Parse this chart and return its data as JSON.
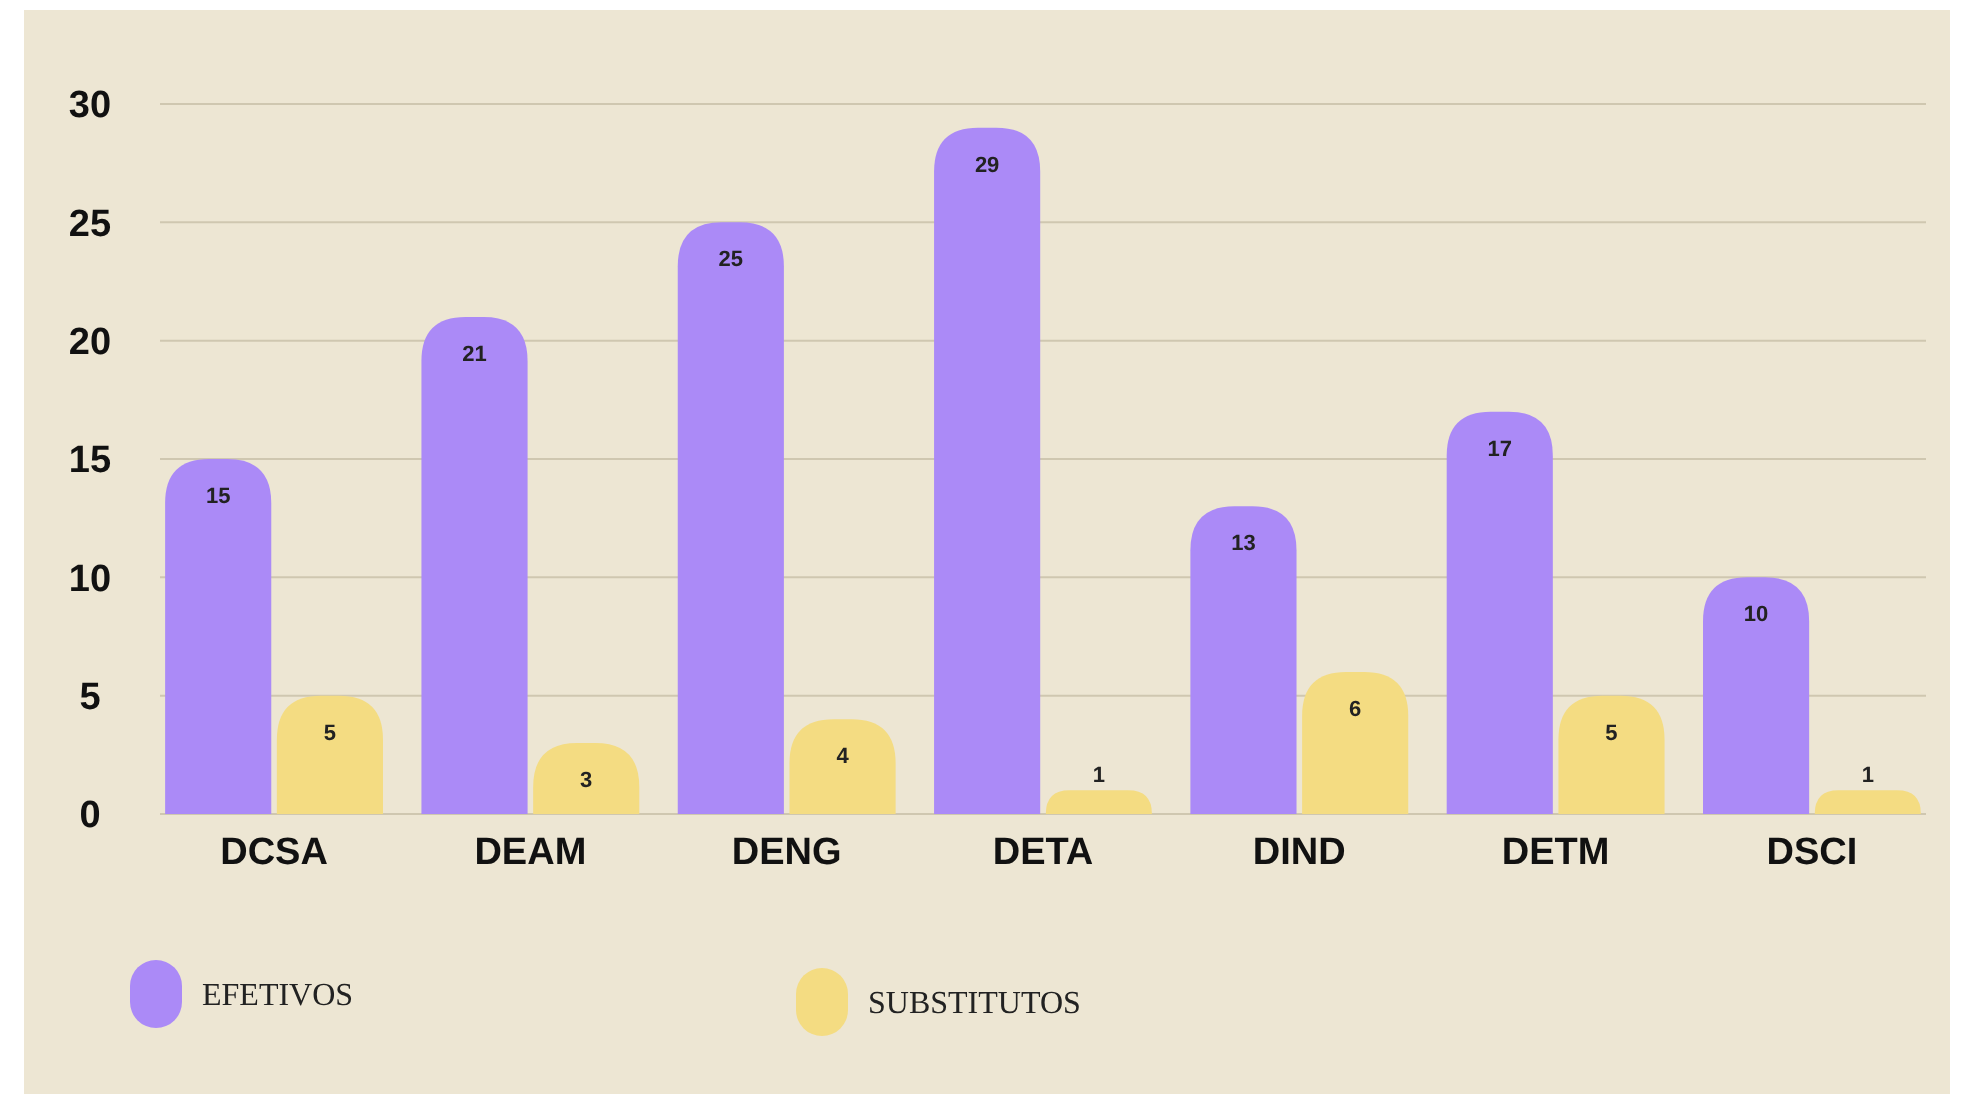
{
  "chart_data": {
    "type": "bar",
    "categories": [
      "DCSA",
      "DEAM",
      "DENG",
      "DETA",
      "DIND",
      "DETM",
      "DSCI"
    ],
    "series": [
      {
        "name": "EFETIVOS",
        "color": "#ab8af7",
        "values": [
          15,
          21,
          25,
          29,
          13,
          17,
          10
        ]
      },
      {
        "name": "SUBSTITUTOS",
        "color": "#f4dc82",
        "values": [
          5,
          3,
          4,
          1,
          6,
          5,
          1
        ]
      }
    ],
    "ylim": [
      0,
      30
    ],
    "yticks": [
      0,
      5,
      10,
      15,
      20,
      25,
      30
    ],
    "grid": "y",
    "data_labels": true,
    "legend": "bottom left"
  }
}
